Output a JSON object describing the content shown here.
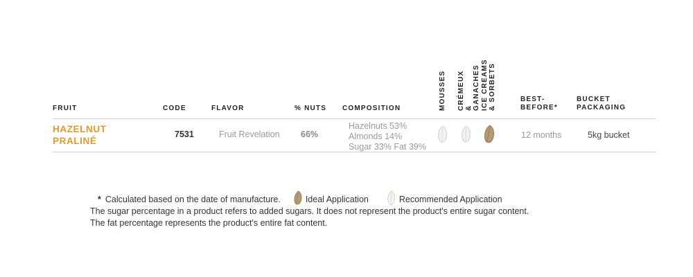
{
  "table": {
    "headers": {
      "fruit": "FRUIT",
      "code": "CODE",
      "flavor": "FLAVOR",
      "nuts": "% NUTS",
      "composition": "COMPOSITION",
      "mousses": "MOUSSES",
      "cremeux": "CRÉMEUX\n& GANACHES",
      "icecreams": "ICE CREAMS\n& SORBETS",
      "bestbefore_1": "BEST-",
      "bestbefore_2": "BEFORE*",
      "bucket_1": "BUCKET",
      "bucket_2": "PACKAGING"
    },
    "row": {
      "name_1": "HAZELNUT",
      "name_2": "PRALINÉ",
      "code": "7531",
      "flavor": "Fruit Revelation",
      "nuts": "66%",
      "composition": [
        "Hazelnuts 53%",
        "Almonds 14%",
        "Sugar 33% Fat 39%"
      ],
      "applications": {
        "mousses": "recommended",
        "cremeux": "recommended",
        "icecreams": "ideal"
      },
      "best_before": "12 months",
      "packaging": "5kg bucket"
    }
  },
  "legend": {
    "asterisk": "*",
    "note": "Calculated based on the date of manufacture.",
    "ideal": "Ideal Application",
    "recommended": "Recommended Application"
  },
  "footnotes": [
    "The sugar percentage in a product refers to added sugars. It does not represent the product's entire sugar content.",
    "The fat percentage represents the product's entire fat content."
  ],
  "colors": {
    "accent": "#e8962a",
    "ideal_fill": "#b59a74",
    "recommended_fill": "#f2f2ee",
    "rule": "#d6d6c8"
  },
  "icons": {
    "ideal": "filled-leaf-icon",
    "recommended": "outline-leaf-icon"
  }
}
